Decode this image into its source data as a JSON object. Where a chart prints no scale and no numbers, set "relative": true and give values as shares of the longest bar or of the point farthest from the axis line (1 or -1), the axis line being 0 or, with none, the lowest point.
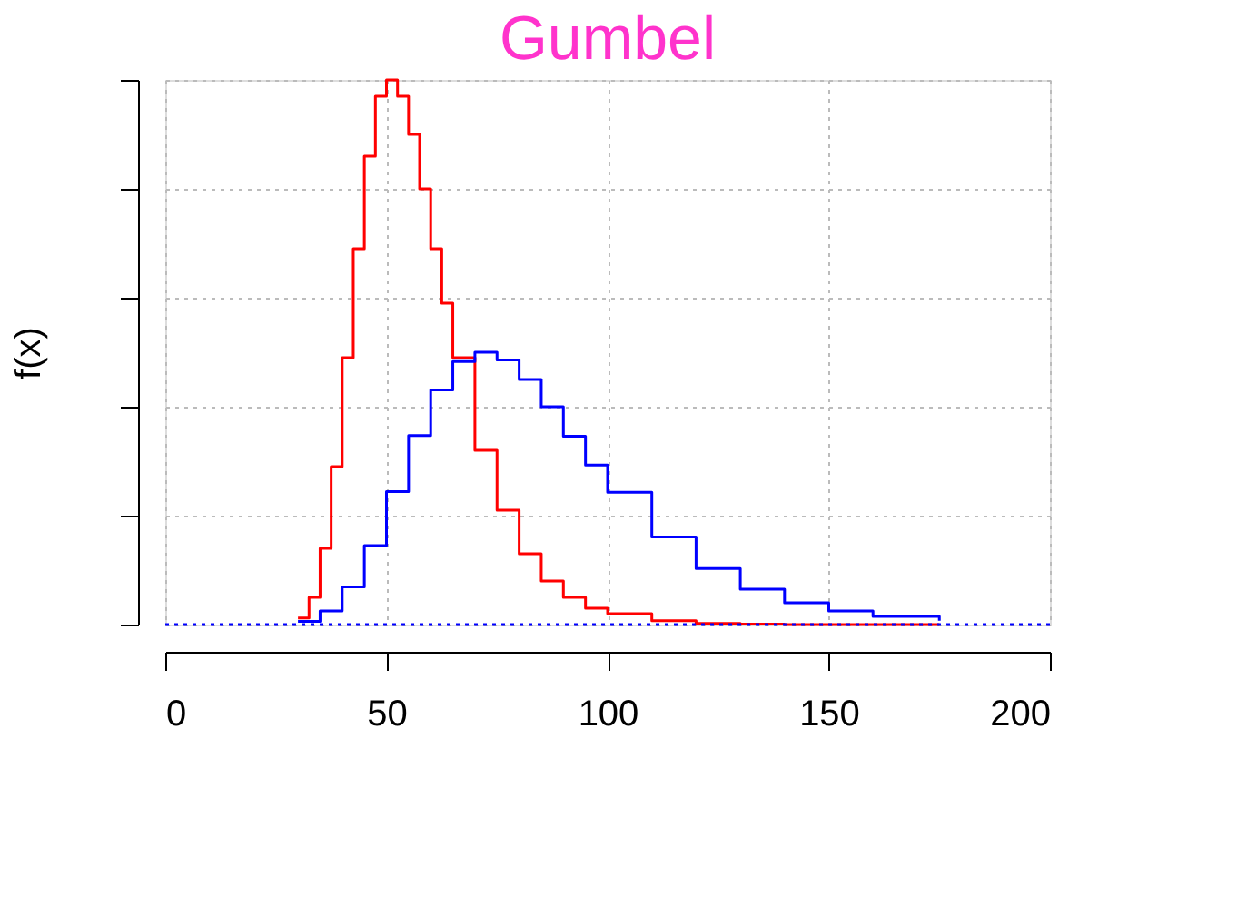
{
  "chart_data": {
    "type": "step",
    "title": "Gumbel",
    "ylabel": "f(x)",
    "relative": true,
    "xlim": [
      0,
      200
    ],
    "xticks": [
      0,
      50,
      100,
      150,
      200
    ],
    "grid": true,
    "tick_labels": "x",
    "line_style": "solid",
    "series": [
      {
        "color": "#ff0000",
        "x": [
          30,
          32.5,
          35,
          37.5,
          40,
          42.5,
          45,
          47.5,
          50,
          52.5,
          55,
          57.5,
          60,
          62.5,
          65,
          70,
          75,
          80,
          85,
          90,
          95,
          100,
          110,
          120,
          130,
          140,
          150,
          175
        ],
        "values": [
          0.012,
          0.05,
          0.14,
          0.29,
          0.49,
          0.69,
          0.86,
          0.97,
          1,
          0.97,
          0.9,
          0.8,
          0.69,
          0.59,
          0.49,
          0.32,
          0.21,
          0.13,
          0.08,
          0.05,
          0.03,
          0.02,
          0.007,
          0.002,
          0.001,
          0,
          0,
          0
        ]
      },
      {
        "color": "#0000ff",
        "x": [
          30,
          35,
          40,
          45,
          50,
          55,
          60,
          65,
          70,
          75,
          80,
          85,
          90,
          95,
          100,
          110,
          120,
          130,
          140,
          150,
          160,
          175
        ],
        "values": [
          0.006,
          0.025,
          0.069,
          0.145,
          0.244,
          0.347,
          0.431,
          0.483,
          0.5,
          0.486,
          0.45,
          0.4,
          0.346,
          0.293,
          0.243,
          0.161,
          0.103,
          0.065,
          0.04,
          0.025,
          0.015,
          0.007
        ]
      }
    ],
    "ref_lines": [
      {
        "axis": "y",
        "value": 0,
        "color": "#0000ff",
        "line_style": "dotted"
      }
    ]
  }
}
